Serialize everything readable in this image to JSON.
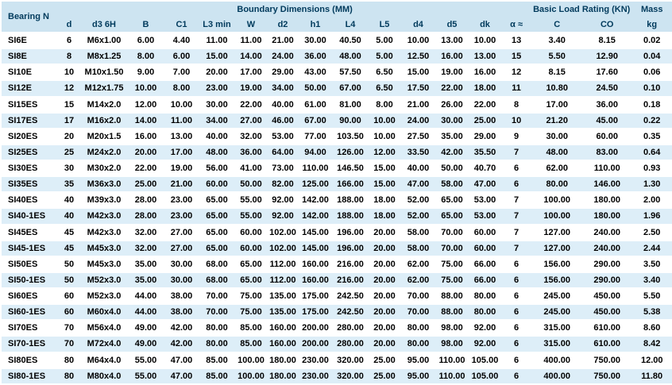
{
  "table": {
    "header_groups": {
      "bearing": "Bearing N",
      "boundary": "Boundary Dimensions (MM)",
      "load_rating": "Basic Load Rating (KN)",
      "mass": "Mass"
    },
    "columns": [
      "d",
      "d3 6H",
      "B",
      "C1",
      "L3 min",
      "W",
      "d2",
      "h1",
      "L4",
      "L5",
      "d4",
      "d5",
      "dk",
      "α ≈",
      "C",
      "CO",
      "kg"
    ],
    "rows": [
      [
        "SI6E",
        "6",
        "M6x1.00",
        "6.00",
        "4.40",
        "11.00",
        "11.00",
        "21.00",
        "30.00",
        "40.50",
        "5.00",
        "10.00",
        "13.00",
        "10.00",
        "13",
        "3.40",
        "8.15",
        "0.02"
      ],
      [
        "SI8E",
        "8",
        "M8x1.25",
        "8.00",
        "6.00",
        "15.00",
        "14.00",
        "24.00",
        "36.00",
        "48.00",
        "5.00",
        "12.50",
        "16.00",
        "13.00",
        "15",
        "5.50",
        "12.90",
        "0.04"
      ],
      [
        "SI10E",
        "10",
        "M10x1.50",
        "9.00",
        "7.00",
        "20.00",
        "17.00",
        "29.00",
        "43.00",
        "57.50",
        "6.50",
        "15.00",
        "19.00",
        "16.00",
        "12",
        "8.15",
        "17.60",
        "0.06"
      ],
      [
        "SI12E",
        "12",
        "M12x1.75",
        "10.00",
        "8.00",
        "23.00",
        "19.00",
        "34.00",
        "50.00",
        "67.00",
        "6.50",
        "17.50",
        "22.00",
        "18.00",
        "11",
        "10.80",
        "24.50",
        "0.10"
      ],
      [
        "SI15ES",
        "15",
        "M14x2.0",
        "12.00",
        "10.00",
        "30.00",
        "22.00",
        "40.00",
        "61.00",
        "81.00",
        "8.00",
        "21.00",
        "26.00",
        "22.00",
        "8",
        "17.00",
        "36.00",
        "0.18"
      ],
      [
        "SI17ES",
        "17",
        "M16x2.0",
        "14.00",
        "11.00",
        "34.00",
        "27.00",
        "46.00",
        "67.00",
        "90.00",
        "10.00",
        "24.00",
        "30.00",
        "25.00",
        "10",
        "21.20",
        "45.00",
        "0.22"
      ],
      [
        "SI20ES",
        "20",
        "M20x1.5",
        "16.00",
        "13.00",
        "40.00",
        "32.00",
        "53.00",
        "77.00",
        "103.50",
        "10.00",
        "27.50",
        "35.00",
        "29.00",
        "9",
        "30.00",
        "60.00",
        "0.35"
      ],
      [
        "SI25ES",
        "25",
        "M24x2.0",
        "20.00",
        "17.00",
        "48.00",
        "36.00",
        "64.00",
        "94.00",
        "126.00",
        "12.00",
        "33.50",
        "42.00",
        "35.50",
        "7",
        "48.00",
        "83.00",
        "0.64"
      ],
      [
        "SI30ES",
        "30",
        "M30x2.0",
        "22.00",
        "19.00",
        "56.00",
        "41.00",
        "73.00",
        "110.00",
        "146.50",
        "15.00",
        "40.00",
        "50.00",
        "40.70",
        "6",
        "62.00",
        "110.00",
        "0.93"
      ],
      [
        "SI35ES",
        "35",
        "M36x3.0",
        "25.00",
        "21.00",
        "60.00",
        "50.00",
        "82.00",
        "125.00",
        "166.00",
        "15.00",
        "47.00",
        "58.00",
        "47.00",
        "6",
        "80.00",
        "146.00",
        "1.30"
      ],
      [
        "SI40ES",
        "40",
        "M39x3.0",
        "28.00",
        "23.00",
        "65.00",
        "55.00",
        "92.00",
        "142.00",
        "188.00",
        "18.00",
        "52.00",
        "65.00",
        "53.00",
        "7",
        "100.00",
        "180.00",
        "2.00"
      ],
      [
        "SI40-1ES",
        "40",
        "M42x3.0",
        "28.00",
        "23.00",
        "65.00",
        "55.00",
        "92.00",
        "142.00",
        "188.00",
        "18.00",
        "52.00",
        "65.00",
        "53.00",
        "7",
        "100.00",
        "180.00",
        "1.96"
      ],
      [
        "SI45ES",
        "45",
        "M42x3.0",
        "32.00",
        "27.00",
        "65.00",
        "60.00",
        "102.00",
        "145.00",
        "196.00",
        "20.00",
        "58.00",
        "70.00",
        "60.00",
        "7",
        "127.00",
        "240.00",
        "2.50"
      ],
      [
        "SI45-1ES",
        "45",
        "M45x3.0",
        "32.00",
        "27.00",
        "65.00",
        "60.00",
        "102.00",
        "145.00",
        "196.00",
        "20.00",
        "58.00",
        "70.00",
        "60.00",
        "7",
        "127.00",
        "240.00",
        "2.44"
      ],
      [
        "SI50ES",
        "50",
        "M45x3.0",
        "35.00",
        "30.00",
        "68.00",
        "65.00",
        "112.00",
        "160.00",
        "216.00",
        "20.00",
        "62.00",
        "75.00",
        "66.00",
        "6",
        "156.00",
        "290.00",
        "3.50"
      ],
      [
        "SI50-1ES",
        "50",
        "M52x3.0",
        "35.00",
        "30.00",
        "68.00",
        "65.00",
        "112.00",
        "160.00",
        "216.00",
        "20.00",
        "62.00",
        "75.00",
        "66.00",
        "6",
        "156.00",
        "290.00",
        "3.40"
      ],
      [
        "SI60ES",
        "60",
        "M52x3.0",
        "44.00",
        "38.00",
        "70.00",
        "75.00",
        "135.00",
        "175.00",
        "242.50",
        "20.00",
        "70.00",
        "88.00",
        "80.00",
        "6",
        "245.00",
        "450.00",
        "5.50"
      ],
      [
        "SI60-1ES",
        "60",
        "M60x4.0",
        "44.00",
        "38.00",
        "70.00",
        "75.00",
        "135.00",
        "175.00",
        "242.50",
        "20.00",
        "70.00",
        "88.00",
        "80.00",
        "6",
        "245.00",
        "450.00",
        "5.38"
      ],
      [
        "SI70ES",
        "70",
        "M56x4.0",
        "49.00",
        "42.00",
        "80.00",
        "85.00",
        "160.00",
        "200.00",
        "280.00",
        "20.00",
        "80.00",
        "98.00",
        "92.00",
        "6",
        "315.00",
        "610.00",
        "8.60"
      ],
      [
        "SI70-1ES",
        "70",
        "M72x4.0",
        "49.00",
        "42.00",
        "80.00",
        "85.00",
        "160.00",
        "200.00",
        "280.00",
        "20.00",
        "80.00",
        "98.00",
        "92.00",
        "6",
        "315.00",
        "610.00",
        "8.42"
      ],
      [
        "SI80ES",
        "80",
        "M64x4.0",
        "55.00",
        "47.00",
        "85.00",
        "100.00",
        "180.00",
        "230.00",
        "320.00",
        "25.00",
        "95.00",
        "110.00",
        "105.00",
        "6",
        "400.00",
        "750.00",
        "12.00"
      ],
      [
        "SI80-1ES",
        "80",
        "M80x4.0",
        "55.00",
        "47.00",
        "85.00",
        "100.00",
        "180.00",
        "230.00",
        "320.00",
        "25.00",
        "95.00",
        "110.00",
        "105.00",
        "6",
        "400.00",
        "750.00",
        "11.80"
      ]
    ]
  },
  "colors": {
    "header_bg": "#cde4f1",
    "stripe_bg": "#ddeef8",
    "row_bg": "#ffffff",
    "header_text": "#003a5c",
    "data_text": "#000000"
  }
}
